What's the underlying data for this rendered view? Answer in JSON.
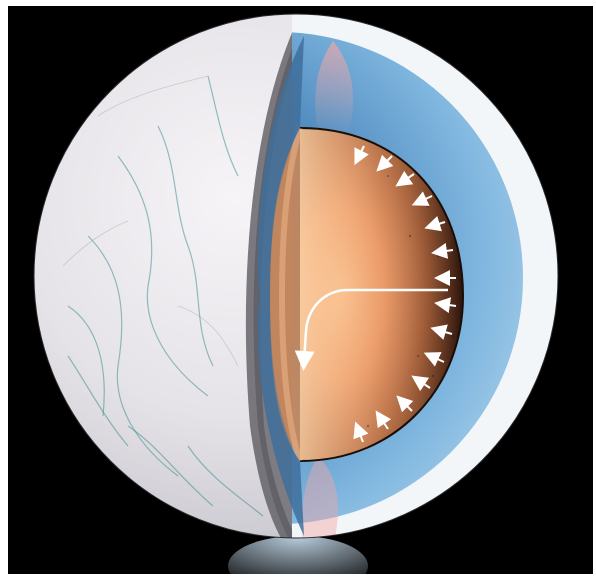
{
  "colors": {
    "background": "#000000",
    "ice_surface": "#e8e6ea",
    "ice_crack": "#3f8f8f",
    "ocean_blue": "#6aa9d8",
    "ice_shell_inner": "#f3f6f8",
    "core_orange": "#e9a170",
    "core_dark": "#3a1d12",
    "arrow_white": "#ffffff"
  },
  "icons": {
    "inward_arrows": "arrow-icon",
    "heat_flow_arrow": "curved-arrow-icon"
  }
}
